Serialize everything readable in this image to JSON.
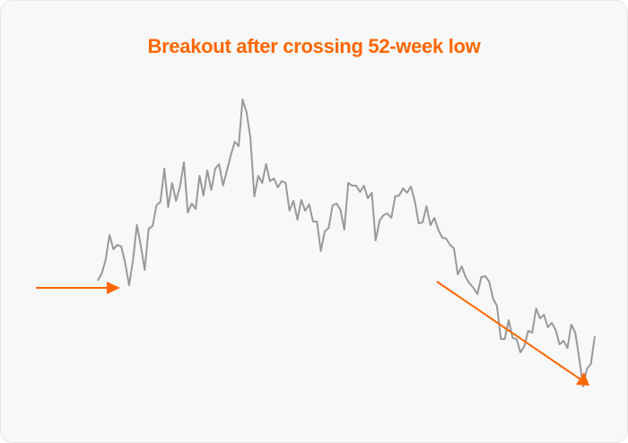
{
  "chart_data": {
    "type": "line",
    "title": "Breakout after crossing 52-week low",
    "xlabel": "",
    "ylabel": "",
    "axes_visible": false,
    "grid": false,
    "line_color": "#999999",
    "accent_color": "#ff6600",
    "series": [
      {
        "values": [
          138,
          146,
          161,
          189,
          173,
          178,
          176,
          158,
          133,
          161,
          200,
          177,
          150,
          196,
          199,
          222,
          226,
          263,
          220,
          247,
          227,
          243,
          270,
          214,
          224,
          218,
          255,
          233,
          261,
          239,
          263,
          268,
          244,
          261,
          278,
          293,
          288,
          340,
          326,
          297,
          232,
          255,
          247,
          268,
          249,
          252,
          242,
          249,
          247,
          216,
          227,
          206,
          228,
          216,
          223,
          204,
          204,
          171,
          193,
          197,
          222,
          224,
          217,
          195,
          247,
          244,
          244,
          237,
          244,
          230,
          236,
          183,
          205,
          211,
          213,
          208,
          232,
          233,
          241,
          236,
          243,
          227,
          202,
          203,
          221,
          200,
          208,
          195,
          186,
          185,
          178,
          174,
          145,
          154,
          142,
          135,
          130,
          123,
          142,
          143,
          137,
          118,
          110,
          73,
          73,
          94,
          74,
          73,
          58,
          65,
          82,
          80,
          107,
          96,
          100,
          86,
          91,
          83,
          67,
          71,
          63,
          89,
          80,
          52,
          20,
          40,
          45,
          76
        ]
      }
    ],
    "annotations": [
      {
        "type": "arrow",
        "description_role": "marks crossing of 52-week low",
        "direction": "right"
      },
      {
        "type": "arrow",
        "description_role": "downtrend",
        "direction": "down-right"
      }
    ]
  }
}
